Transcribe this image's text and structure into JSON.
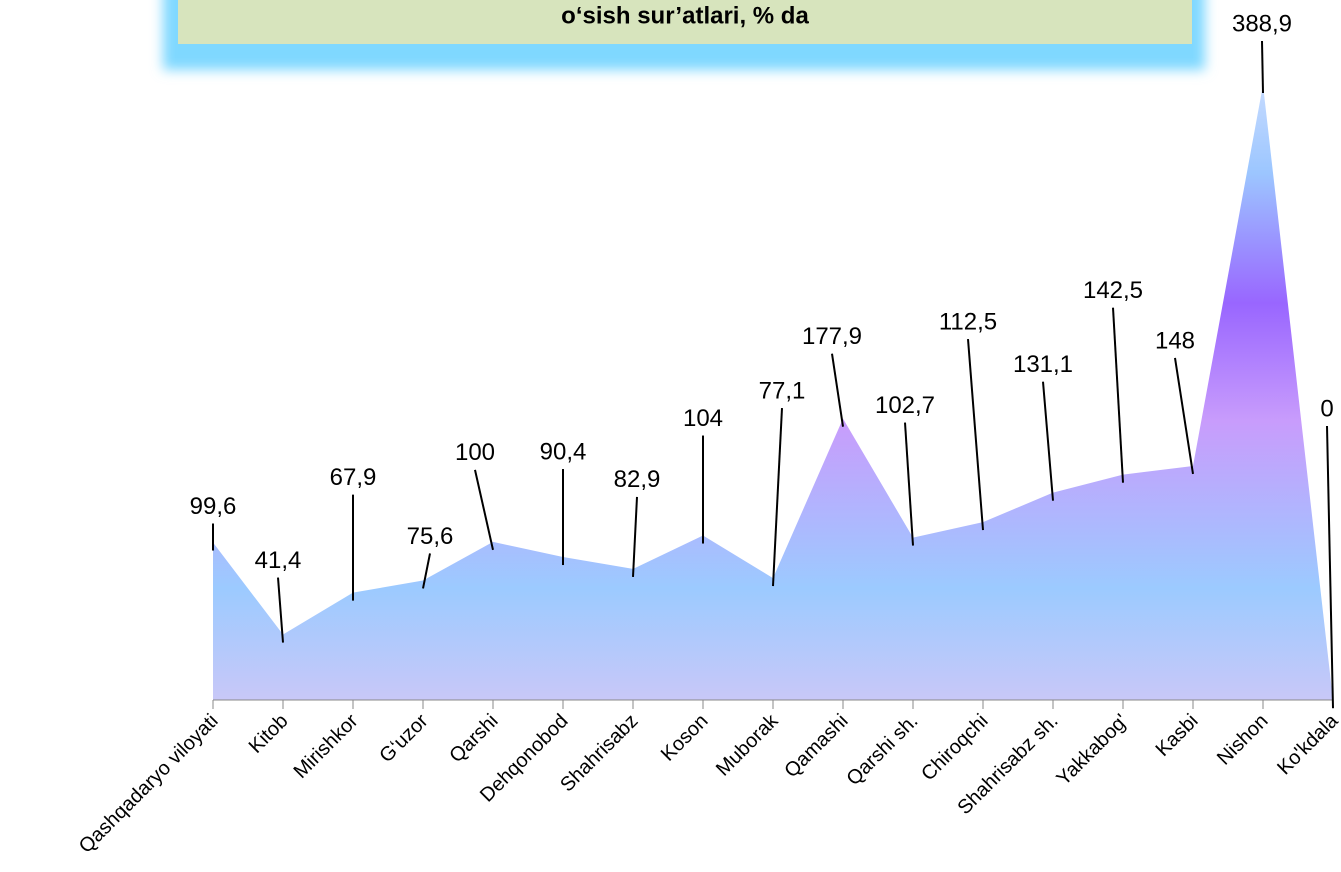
{
  "chart_data": {
    "type": "area",
    "title": "o‘sish sur’atlari, % da",
    "categories": [
      "Qashqadaryo viloyati",
      "Kitob",
      "Mirishkor",
      "G‘uzor",
      "Qarshi",
      "Dehqonobod",
      "Shahrisabz",
      "Koson",
      "Muborak",
      "Qamashi",
      "Qarshi sh.",
      "Chiroqchi",
      "Shahrisabz sh.",
      "Yakkabog'",
      "Kasbi",
      "Nishon",
      "Ko'kdala"
    ],
    "values": [
      99.6,
      41.4,
      67.9,
      75.6,
      100,
      90.4,
      82.9,
      104,
      77.1,
      177.9,
      102.7,
      112.5,
      131.1,
      142.5,
      148,
      388.9,
      0
    ],
    "value_labels": [
      "99,6",
      "41,4",
      "67,9",
      "75,6",
      "100",
      "90,4",
      "82,9",
      "104",
      "77,1",
      "177,9",
      "102,7",
      "112,5",
      "131,1",
      "142,5",
      "148",
      "388,9",
      "0"
    ]
  }
}
